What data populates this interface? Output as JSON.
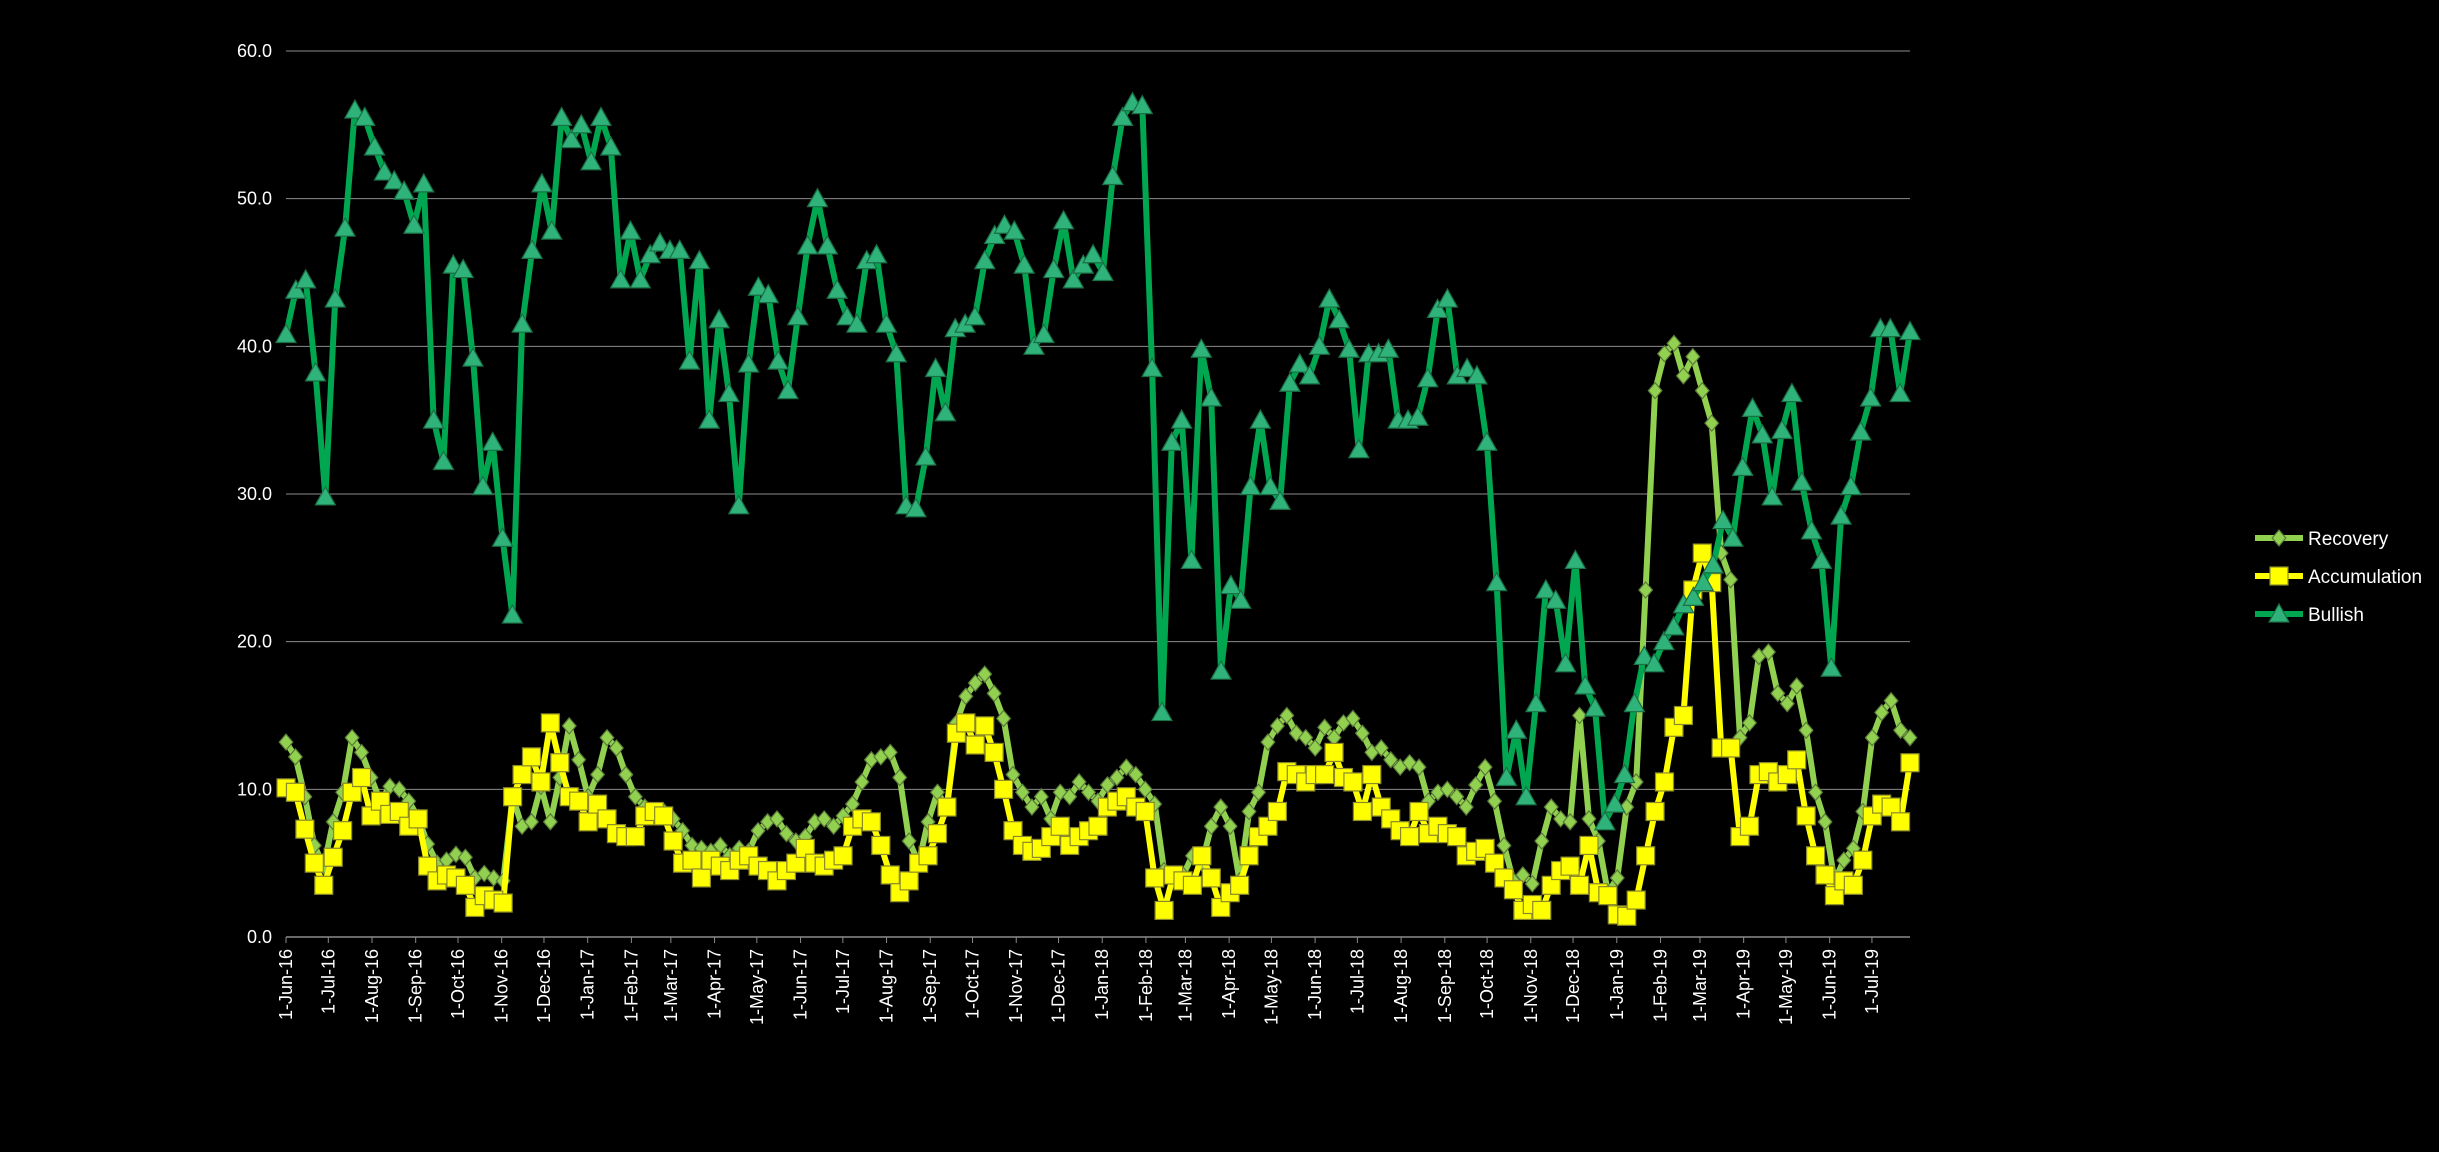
{
  "chart_data": {
    "type": "line",
    "title": "",
    "xlabel": "",
    "ylabel": "",
    "ylim": [
      0,
      60
    ],
    "yticks": [
      "0.0",
      "10.0",
      "20.0",
      "30.0",
      "40.0",
      "50.0",
      "60.0"
    ],
    "ytick_values": [
      0,
      10,
      20,
      30,
      40,
      50,
      60
    ],
    "grid": true,
    "legend_position": "right",
    "start_date": "2016-06-01",
    "end_date": "2019-07-28",
    "x_labels": [
      "1-Jun-16",
      "1-Jul-16",
      "1-Aug-16",
      "1-Sep-16",
      "1-Oct-16",
      "1-Nov-16",
      "1-Dec-16",
      "1-Jan-17",
      "1-Feb-17",
      "1-Mar-17",
      "1-Apr-17",
      "1-May-17",
      "1-Jun-17",
      "1-Jul-17",
      "1-Aug-17",
      "1-Sep-17",
      "1-Oct-17",
      "1-Nov-17",
      "1-Dec-17",
      "1-Jan-18",
      "1-Feb-18",
      "1-Mar-18",
      "1-Apr-18",
      "1-May-18",
      "1-Jun-18",
      "1-Jul-18",
      "1-Aug-18",
      "1-Sep-18",
      "1-Oct-18",
      "1-Nov-18",
      "1-Dec-18",
      "1-Jan-19",
      "1-Feb-19",
      "1-Mar-19",
      "1-Apr-19",
      "1-May-19",
      "1-Jun-19",
      "1-Jul-19"
    ],
    "x_label_dates": [
      "2016-06-01",
      "2016-07-01",
      "2016-08-01",
      "2016-09-01",
      "2016-10-01",
      "2016-11-01",
      "2016-12-01",
      "2017-01-01",
      "2017-02-01",
      "2017-03-01",
      "2017-04-01",
      "2017-05-01",
      "2017-06-01",
      "2017-07-01",
      "2017-08-01",
      "2017-09-01",
      "2017-10-01",
      "2017-11-01",
      "2017-12-01",
      "2018-01-01",
      "2018-02-01",
      "2018-03-01",
      "2018-04-01",
      "2018-05-01",
      "2018-06-01",
      "2018-07-01",
      "2018-08-01",
      "2018-09-01",
      "2018-10-01",
      "2018-11-01",
      "2018-12-01",
      "2019-01-01",
      "2019-02-01",
      "2019-03-01",
      "2019-04-01",
      "2019-05-01",
      "2019-06-01",
      "2019-07-01"
    ],
    "series": [
      {
        "name": "Recovery",
        "color": "#92d050",
        "marker": "diamond",
        "values": [
          13.2,
          12.2,
          9.5,
          6.2,
          4.8,
          7.8,
          9.8,
          13.5,
          12.5,
          10.8,
          9.2,
          10.2,
          10.0,
          9.2,
          8.1,
          6.3,
          5.0,
          5.2,
          5.6,
          5.4,
          4.0,
          4.3,
          4.0,
          3.8,
          9.5,
          7.5,
          7.8,
          10.2,
          7.8,
          10.8,
          14.3,
          12.0,
          9.5,
          11.0,
          13.5,
          12.8,
          11.0,
          9.5,
          8.8,
          8.3,
          8.5,
          8.0,
          7.2,
          6.2,
          6.0,
          5.8,
          6.2,
          5.5,
          6.0,
          5.8,
          7.2,
          7.8,
          8.0,
          7.0,
          6.5,
          6.8,
          7.8,
          8.0,
          7.5,
          8.2,
          9.0,
          10.5,
          12.0,
          12.2,
          12.5,
          10.8,
          6.5,
          5.0,
          7.8,
          9.8,
          8.8,
          14.5,
          16.3,
          17.2,
          17.8,
          16.5,
          14.8,
          11.0,
          9.8,
          8.8,
          9.5,
          8.0,
          9.8,
          9.5,
          10.5,
          9.8,
          9.2,
          10.3,
          10.8,
          11.5,
          11.0,
          10.0,
          9.0,
          4.5,
          4.0,
          4.2,
          5.5,
          5.0,
          7.5,
          8.8,
          7.5,
          3.8,
          8.5,
          9.8,
          13.2,
          14.3,
          15.0,
          13.8,
          13.5,
          12.8,
          14.2,
          13.5,
          14.5,
          14.8,
          13.8,
          12.5,
          12.8,
          12.0,
          11.5,
          11.8,
          11.5,
          9.2,
          9.8,
          10.0,
          9.5,
          8.8,
          10.3,
          11.5,
          9.2,
          6.2,
          3.8,
          4.2,
          3.6,
          6.5,
          8.8,
          8.0,
          7.8,
          15.0,
          8.0,
          6.5,
          3.0,
          4.0,
          8.8,
          10.5,
          23.5,
          37.0,
          39.5,
          40.2,
          38.0,
          39.3,
          37.0,
          34.8,
          26.0,
          24.2,
          13.5,
          14.5,
          19.0,
          19.3,
          16.5,
          15.8,
          17.0,
          14.0,
          9.8,
          7.8,
          3.8,
          5.2,
          6.0,
          8.5,
          13.5,
          15.2,
          16.0,
          14.0,
          13.5
        ]
      },
      {
        "name": "Accumulation",
        "color": "#ffff00",
        "marker": "square",
        "values": [
          10.1,
          9.8,
          7.3,
          5.0,
          3.5,
          5.4,
          7.2,
          9.8,
          10.8,
          8.2,
          9.2,
          8.3,
          8.5,
          7.5,
          8.0,
          4.8,
          3.8,
          4.2,
          4.0,
          3.5,
          2.0,
          2.8,
          2.5,
          2.3,
          9.5,
          11.0,
          12.2,
          10.5,
          14.5,
          11.8,
          9.5,
          9.2,
          7.8,
          9.0,
          8.0,
          7.0,
          6.8,
          6.8,
          8.2,
          8.5,
          8.2,
          6.5,
          5.0,
          5.2,
          4.0,
          5.2,
          4.8,
          4.5,
          5.2,
          5.5,
          4.8,
          4.5,
          3.8,
          4.5,
          5.0,
          6.0,
          5.0,
          4.8,
          5.2,
          5.5,
          7.5,
          8.0,
          7.8,
          6.2,
          4.2,
          3.0,
          3.8,
          5.0,
          5.5,
          7.0,
          8.8,
          13.8,
          14.5,
          13.0,
          14.3,
          12.5,
          10.0,
          7.2,
          6.2,
          5.8,
          6.0,
          6.8,
          7.5,
          6.2,
          6.8,
          7.2,
          7.5,
          8.8,
          9.2,
          9.5,
          8.8,
          8.5,
          4.0,
          1.8,
          4.2,
          3.8,
          3.5,
          5.5,
          4.0,
          2.0,
          3.0,
          3.5,
          5.5,
          6.8,
          7.5,
          8.5,
          11.2,
          11.0,
          10.5,
          11.0,
          11.0,
          12.5,
          10.8,
          10.5,
          8.5,
          11.0,
          8.8,
          8.0,
          7.2,
          6.8,
          8.5,
          7.0,
          7.5,
          7.0,
          6.8,
          5.5,
          5.8,
          6.0,
          5.0,
          4.0,
          3.2,
          1.8,
          2.2,
          1.8,
          3.5,
          4.5,
          4.8,
          3.5,
          6.2,
          3.0,
          2.8,
          1.5,
          1.4,
          2.5,
          5.5,
          8.5,
          10.5,
          14.2,
          15.0,
          23.5,
          26.0,
          24.0,
          12.8,
          12.8,
          6.8,
          7.5,
          11.0,
          11.2,
          10.5,
          11.0,
          12.0,
          8.2,
          5.5,
          4.2,
          2.8,
          3.8,
          3.5,
          5.2,
          8.2,
          9.0,
          8.8,
          7.8,
          11.8
        ]
      },
      {
        "name": "Bullish",
        "color": "#00a650",
        "marker": "triangle",
        "values": [
          40.8,
          43.8,
          44.5,
          38.2,
          29.8,
          43.2,
          48.0,
          56.0,
          55.5,
          53.5,
          51.8,
          51.2,
          50.5,
          48.2,
          51.0,
          35.0,
          32.2,
          45.5,
          45.2,
          39.2,
          30.5,
          33.5,
          27.0,
          21.8,
          41.5,
          46.5,
          51.0,
          47.8,
          55.5,
          54.0,
          55.0,
          52.5,
          55.5,
          53.5,
          44.5,
          47.8,
          44.5,
          46.2,
          47.0,
          46.5,
          46.5,
          39.0,
          45.8,
          35.0,
          41.8,
          36.8,
          29.2,
          38.8,
          44.0,
          43.5,
          39.0,
          37.0,
          42.0,
          46.8,
          50.0,
          46.8,
          43.8,
          42.0,
          41.5,
          45.8,
          46.2,
          41.5,
          39.5,
          29.2,
          29.0,
          32.5,
          38.5,
          35.5,
          41.2,
          41.5,
          42.0,
          45.8,
          47.5,
          48.2,
          47.8,
          45.5,
          40.0,
          40.8,
          45.2,
          48.5,
          44.5,
          45.5,
          46.2,
          45.0,
          51.5,
          55.5,
          56.5,
          56.3,
          38.5,
          15.2,
          33.5,
          35.0,
          25.5,
          39.8,
          36.5,
          18.0,
          23.8,
          22.8,
          30.5,
          35.0,
          30.5,
          29.5,
          37.5,
          38.8,
          38.0,
          40.0,
          43.2,
          41.8,
          39.8,
          33.0,
          39.5,
          39.5,
          39.8,
          35.0,
          35.0,
          35.2,
          37.8,
          42.5,
          43.2,
          38.0,
          38.5,
          38.0,
          33.5,
          24.0,
          10.8,
          14.0,
          9.5,
          15.8,
          23.5,
          22.8,
          18.5,
          25.5,
          17.0,
          15.5,
          7.8,
          9.0,
          11.0,
          15.8,
          19.0,
          18.5,
          20.0,
          21.0,
          22.5,
          23.0,
          24.0,
          25.2,
          28.2,
          27.0,
          31.8,
          35.8,
          34.0,
          29.8,
          34.3,
          36.8,
          30.8,
          27.5,
          25.5,
          18.2,
          28.5,
          30.5,
          34.2,
          36.5,
          41.2,
          41.2,
          36.8,
          41.0
        ]
      }
    ],
    "legend": [
      "Recovery",
      "Accumulation",
      "Bullish"
    ]
  }
}
